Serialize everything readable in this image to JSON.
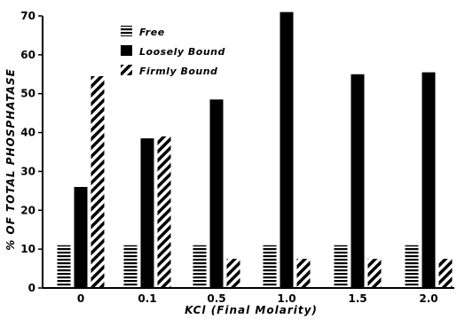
{
  "chart_data": {
    "type": "bar",
    "categories": [
      "0",
      "0.1",
      "0.5",
      "1.0",
      "1.5",
      "2.0"
    ],
    "series": [
      {
        "name": "Free",
        "pattern": "horizontal-stripes",
        "values": [
          11,
          11,
          11,
          11,
          11,
          11
        ]
      },
      {
        "name": "Loosely Bound",
        "pattern": "solid",
        "values": [
          26,
          38.5,
          48.5,
          71,
          55,
          55.5
        ]
      },
      {
        "name": "Firmly Bound",
        "pattern": "diagonal-stripes",
        "values": [
          54.5,
          39,
          7.5,
          7.5,
          7.5,
          7.5
        ]
      }
    ],
    "xlabel": "KCl (Final Molarity)",
    "ylabel": "% OF TOTAL PHOSPHATASE",
    "ylim": [
      0,
      70
    ],
    "yticks": [
      0,
      10,
      20,
      30,
      40,
      50,
      60,
      70
    ],
    "legend_position": "top-left",
    "grid": false,
    "colors": {
      "ink": "#000000",
      "paper": "#ffffff"
    }
  }
}
